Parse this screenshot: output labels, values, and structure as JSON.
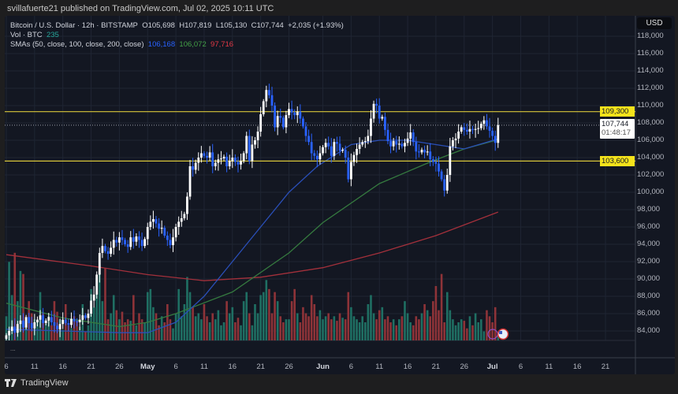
{
  "publisher_line": "svillafuerte21 published on TradingView.com, Jul 02, 2025 10:11 UTC",
  "legend": {
    "symbol": "Bitcoin / U.S. Dollar · 12h · BITSTAMP",
    "open": "O105,698",
    "high": "H107,819",
    "low": "L105,130",
    "close": "C107,744",
    "change": "+2,035 (+1.93%)",
    "vol_label": "Vol · BTC",
    "vol_value": "235",
    "sma_label": "SMAs (50, close, 100, close, 200, close)",
    "sma50": "106,168",
    "sma100": "106,072",
    "sma200": "97,716"
  },
  "currency": "USD",
  "more_label": "...",
  "brand": "TradingView",
  "colors": {
    "up": "#ffffff",
    "down": "#2962ff",
    "vol_up": "#1f6f63",
    "vol_down": "#8e3338",
    "sma50": "#2a4fb8",
    "sma100": "#357a3f",
    "sma200": "#a3303b",
    "level": "#d8c63a",
    "accent_blue": "#2962ff"
  },
  "price_axis": [
    "118,000",
    "116,000",
    "114,000",
    "112,000",
    "110,000",
    "108,000",
    "106,000",
    "104,000",
    "102,000",
    "100,000",
    "98,000",
    "96,000",
    "94,000",
    "92,000",
    "90,000",
    "88,000",
    "86,000",
    "84,000"
  ],
  "price_tags": {
    "resistance": "109,300",
    "support": "103,600",
    "last_price": "107,744",
    "countdown": "01:48:17"
  },
  "time_axis": [
    {
      "label": "6",
      "day": 0
    },
    {
      "label": "11",
      "day": 5
    },
    {
      "label": "16",
      "day": 10
    },
    {
      "label": "21",
      "day": 15
    },
    {
      "label": "26",
      "day": 20
    },
    {
      "label": "May",
      "day": 25,
      "bold": true
    },
    {
      "label": "6",
      "day": 30
    },
    {
      "label": "11",
      "day": 35
    },
    {
      "label": "16",
      "day": 40
    },
    {
      "label": "21",
      "day": 45
    },
    {
      "label": "26",
      "day": 50
    },
    {
      "label": "Jun",
      "day": 56,
      "bold": true
    },
    {
      "label": "6",
      "day": 61
    },
    {
      "label": "11",
      "day": 66
    },
    {
      "label": "16",
      "day": 71
    },
    {
      "label": "21",
      "day": 76
    },
    {
      "label": "26",
      "day": 81
    },
    {
      "label": "Jul",
      "day": 86,
      "bold": true
    },
    {
      "label": "6",
      "day": 91
    },
    {
      "label": "11",
      "day": 96
    },
    {
      "label": "16",
      "day": 101
    },
    {
      "label": "21",
      "day": 106
    }
  ],
  "chart_data": {
    "type": "candlestick",
    "interval": "12h",
    "first_candle": "2025-04-06",
    "ylim": [
      83000,
      119000
    ],
    "grid": true,
    "levels": [
      109300,
      103600
    ],
    "last_price": 107744,
    "closes": [
      83500,
      84000,
      84500,
      83800,
      84800,
      85200,
      84400,
      85600,
      84900,
      84300,
      85000,
      85300,
      85800,
      84900,
      85200,
      85600,
      85000,
      84600,
      84200,
      84800,
      85300,
      84900,
      84700,
      85400,
      85100,
      85000,
      85300,
      85800,
      85500,
      86000,
      87500,
      88200,
      90500,
      93000,
      93800,
      93200,
      92900,
      93600,
      94500,
      94200,
      94800,
      94500,
      94000,
      93700,
      94800,
      94300,
      94900,
      94500,
      93800,
      94600,
      96000,
      96600,
      96900,
      96400,
      95800,
      95900,
      95000,
      94500,
      93900,
      94800,
      96000,
      96600,
      97000,
      97500,
      99500,
      103000,
      102600,
      103400,
      104000,
      104500,
      104200,
      104000,
      104600,
      103000,
      103400,
      103800,
      103900,
      104100,
      103000,
      103600,
      104000,
      103500,
      103200,
      103600,
      104500,
      106500,
      103600,
      105500,
      106000,
      107000,
      109000,
      110500,
      111800,
      111200,
      110000,
      107500,
      108800,
      108600,
      107500,
      108900,
      109600,
      109200,
      108900,
      109300,
      108500,
      107600,
      106500,
      105800,
      104500,
      104200,
      103800,
      104500,
      105200,
      105700,
      105300,
      104200,
      105800,
      105600,
      104800,
      104900,
      104000,
      101500,
      103500,
      104300,
      105000,
      105500,
      105800,
      105900,
      106500,
      108500,
      110200,
      110000,
      108500,
      108700,
      107200,
      105900,
      105300,
      105900,
      105500,
      105600,
      105300,
      105700,
      106200,
      106900,
      105800,
      104700,
      104600,
      104900,
      104600,
      104700,
      103800,
      103500,
      103300,
      102400,
      101500,
      100200,
      102000,
      105300,
      106000,
      106200,
      107000,
      107500,
      107200,
      107000,
      107300,
      107200,
      107300,
      107400,
      107900,
      108300,
      107600,
      107100,
      106500,
      105700,
      107744
    ],
    "volumes": [
      800,
      2600,
      1500,
      2900,
      1300,
      2300,
      2200,
      600,
      1300,
      900,
      700,
      600,
      1600,
      900,
      550,
      800,
      500,
      1300,
      950,
      700,
      350,
      1200,
      500,
      400,
      800,
      650,
      450,
      1200,
      300,
      500,
      1700,
      1100,
      2100,
      2500,
      1300,
      2400,
      700,
      900,
      1500,
      1000,
      700,
      950,
      600,
      700,
      650,
      1500,
      500,
      900,
      700,
      600,
      1600,
      1700,
      1100,
      900,
      500,
      800,
      600,
      1200,
      700,
      400,
      900,
      1700,
      800,
      1200,
      2100,
      1600,
      1100,
      800,
      900,
      700,
      1200,
      800,
      600,
      900,
      700,
      1000,
      500,
      600,
      1300,
      900,
      1100,
      600,
      750,
      500,
      1300,
      1600,
      900,
      500,
      1200,
      900,
      1500,
      1600,
      2000,
      1700,
      900,
      1600,
      1300,
      800,
      600,
      700,
      700,
      1300,
      1700,
      900,
      600,
      1100,
      900,
      800,
      1500,
      1200,
      800,
      1000,
      700,
      800,
      900,
      700,
      800,
      650,
      900,
      750,
      700,
      1600,
      1100,
      800,
      700,
      600,
      800,
      600,
      1200,
      1500,
      900,
      700,
      1000,
      1100,
      700,
      800,
      600,
      700,
      500,
      700,
      800,
      1300,
      900,
      600,
      500,
      800,
      700,
      900,
      1200,
      1000,
      800,
      1300,
      1800,
      1000,
      2200,
      600,
      1600,
      1000,
      700,
      500,
      600,
      700,
      650,
      400,
      800,
      500,
      900,
      600,
      700,
      300,
      1000,
      800,
      600,
      1100,
      235
    ],
    "sma50": {
      "days": [
        0,
        10,
        20,
        25,
        30,
        35,
        40,
        45,
        50,
        55,
        61,
        66,
        71,
        76,
        81,
        87
      ],
      "values": [
        84200,
        84000,
        83800,
        83800,
        85000,
        88000,
        92000,
        96000,
        100000,
        103000,
        105500,
        106000,
        106000,
        105500,
        105000,
        106168
      ]
    },
    "sma100": {
      "days": [
        0,
        10,
        20,
        25,
        30,
        40,
        50,
        56,
        66,
        75,
        81,
        87
      ],
      "values": [
        87200,
        85500,
        84500,
        85000,
        86000,
        88500,
        93000,
        96500,
        101000,
        103500,
        105000,
        106072
      ]
    },
    "sma200": {
      "days": [
        0,
        15,
        25,
        35,
        45,
        56,
        66,
        76,
        87
      ],
      "values": [
        92800,
        91500,
        90500,
        89800,
        90200,
        91300,
        93000,
        95000,
        97716
      ]
    }
  }
}
